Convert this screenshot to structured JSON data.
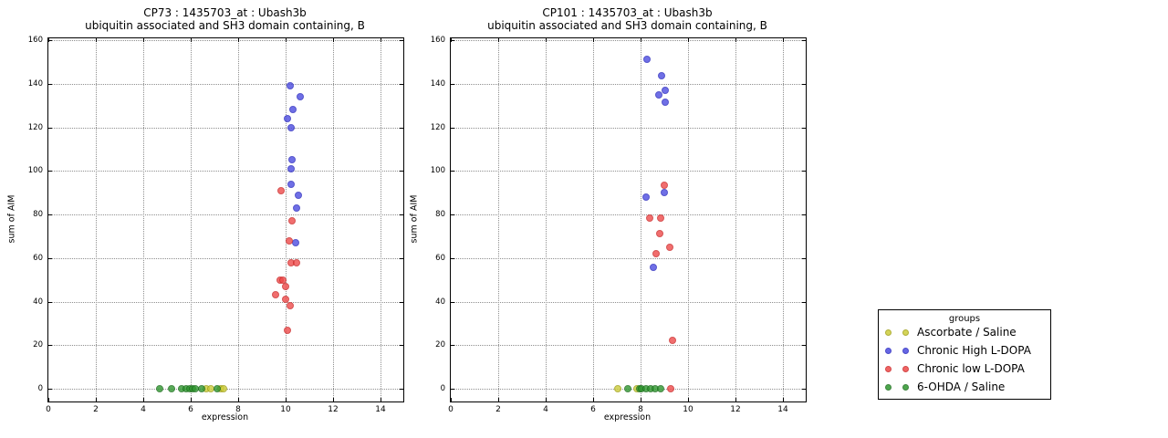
{
  "legend": {
    "title": "groups"
  },
  "groups": [
    {
      "name": "Ascorbate / Saline",
      "color": "#cdcd3c",
      "edge": "#a2a217"
    },
    {
      "name": "Chronic High L-DOPA",
      "color": "#4c4ce0",
      "edge": "#2c2cc0"
    },
    {
      "name": "Chronic low L-DOPA",
      "color": "#ee4a4a",
      "edge": "#cc2a2a"
    },
    {
      "name": "6-OHDA / Saline",
      "color": "#2f972f",
      "edge": "#1d701d"
    }
  ],
  "axes": {
    "x_ticks": [
      0,
      2,
      4,
      6,
      8,
      10,
      12,
      14
    ],
    "y_ticks": [
      0,
      20,
      40,
      60,
      80,
      100,
      120,
      140,
      160
    ],
    "xlim": [
      0,
      15
    ],
    "ylim": [
      -6,
      161
    ],
    "grid": true
  },
  "chart_data": [
    {
      "type": "scatter",
      "title": "CP73 : 1435703_at : Ubash3b",
      "subtitle": "ubiquitin associated and SH3 domain containing, B",
      "xlabel": "expression",
      "ylabel": "sum of AIM",
      "xlim": [
        0,
        15
      ],
      "ylim": [
        -6,
        161
      ],
      "legend_position": "outside-right",
      "series": [
        {
          "name": "Ascorbate / Saline",
          "points": [
            [
              6.65,
              0
            ],
            [
              6.85,
              0
            ],
            [
              7.25,
              0
            ],
            [
              7.4,
              0
            ]
          ]
        },
        {
          "name": "Chronic High L-DOPA",
          "points": [
            [
              10.18,
              139
            ],
            [
              10.63,
              134
            ],
            [
              10.31,
              128
            ],
            [
              10.08,
              124
            ],
            [
              10.24,
              120
            ],
            [
              10.27,
              105
            ],
            [
              10.24,
              101
            ],
            [
              10.24,
              94
            ],
            [
              10.53,
              89
            ],
            [
              10.47,
              83
            ],
            [
              10.44,
              67
            ]
          ]
        },
        {
          "name": "Chronic low L-DOPA",
          "points": [
            [
              9.82,
              91
            ],
            [
              10.26,
              77
            ],
            [
              10.14,
              68
            ],
            [
              10.22,
              58
            ],
            [
              10.45,
              58
            ],
            [
              9.76,
              50
            ],
            [
              9.9,
              50
            ],
            [
              10.0,
              47
            ],
            [
              9.57,
              43
            ],
            [
              9.99,
              41
            ],
            [
              10.18,
              38
            ],
            [
              10.07,
              27
            ]
          ]
        },
        {
          "name": "6-OHDA / Saline",
          "points": [
            [
              4.7,
              0
            ],
            [
              5.2,
              0
            ],
            [
              5.63,
              0
            ],
            [
              5.82,
              0
            ],
            [
              5.98,
              0
            ],
            [
              6.06,
              0
            ],
            [
              6.2,
              0
            ],
            [
              6.45,
              0
            ],
            [
              7.1,
              0
            ]
          ]
        }
      ]
    },
    {
      "type": "scatter",
      "title": "CP101 : 1435703_at : Ubash3b",
      "subtitle": "ubiquitin associated and SH3 domain containing, B",
      "xlabel": "expression",
      "ylabel": "sum of AIM",
      "xlim": [
        0,
        15
      ],
      "ylim": [
        -6,
        161
      ],
      "legend_position": "outside-right",
      "series": [
        {
          "name": "Ascorbate / Saline",
          "points": [
            [
              7.03,
              0
            ],
            [
              7.84,
              0
            ]
          ]
        },
        {
          "name": "Chronic High L-DOPA",
          "points": [
            [
              8.26,
              151
            ],
            [
              8.9,
              143.5
            ],
            [
              9.05,
              137
            ],
            [
              8.77,
              135
            ],
            [
              9.03,
              131.5
            ],
            [
              8.99,
              90
            ],
            [
              8.22,
              88
            ],
            [
              8.54,
              55.5
            ]
          ]
        },
        {
          "name": "Chronic low L-DOPA",
          "points": [
            [
              9.01,
              93.5
            ],
            [
              8.4,
              78.5
            ],
            [
              8.83,
              78.5
            ],
            [
              8.82,
              71
            ],
            [
              9.22,
              65
            ],
            [
              8.67,
              62
            ],
            [
              9.33,
              22
            ],
            [
              9.27,
              0
            ]
          ]
        },
        {
          "name": "6-OHDA / Saline",
          "points": [
            [
              7.47,
              0
            ],
            [
              7.95,
              0
            ],
            [
              8.05,
              0
            ],
            [
              8.24,
              0
            ],
            [
              8.43,
              0
            ],
            [
              8.63,
              0
            ],
            [
              8.86,
              0
            ]
          ]
        }
      ]
    }
  ]
}
